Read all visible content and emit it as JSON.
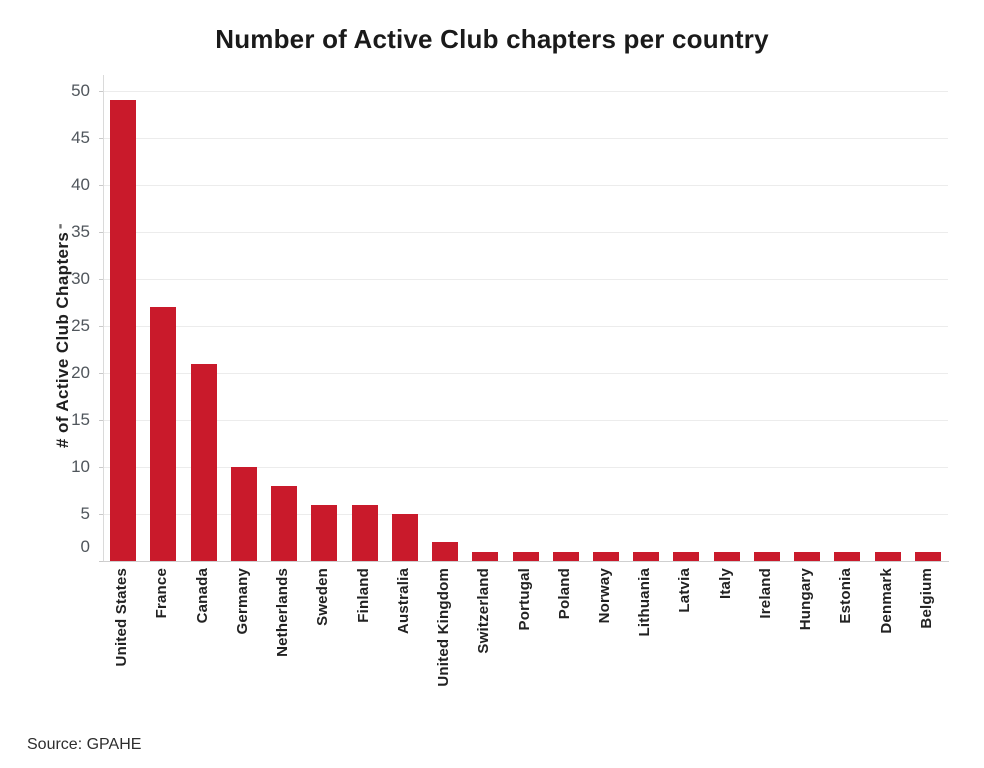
{
  "source": "Source: GPAHE",
  "colors": {
    "bar": "#c91a2b",
    "title": "#1a1a1a",
    "tick_label": "#50565c",
    "category_label": "#222222",
    "gridline": "#ececec",
    "axis_line": "#cfcfcf",
    "source_text": "#2e2e2e",
    "background": "#ffffff"
  },
  "chart_data": {
    "type": "bar",
    "title": "Number of Active Club chapters per country",
    "xlabel": "",
    "ylabel": "# of Active Club Chapters",
    "ylabel_suffix": "⁼",
    "categories": [
      "United States",
      "France",
      "Canada",
      "Germany",
      "Netherlands",
      "Sweden",
      "Finland",
      "Australia",
      "United Kingdom",
      "Switzerland",
      "Portugal",
      "Poland",
      "Norway",
      "Lithuania",
      "Latvia",
      "Italy",
      "Ireland",
      "Hungary",
      "Estonia",
      "Denmark",
      "Belgium"
    ],
    "values": [
      49,
      27,
      21,
      10,
      8,
      6,
      6,
      5,
      2,
      1,
      1,
      1,
      1,
      1,
      1,
      1,
      1,
      1,
      1,
      1,
      1
    ],
    "yticks": [
      0,
      5,
      10,
      15,
      20,
      25,
      30,
      35,
      40,
      45,
      50
    ],
    "ylim": [
      0,
      50
    ],
    "grid": true,
    "legend": false,
    "bar_color": "#c91a2b",
    "source": "Source: GPAHE"
  }
}
